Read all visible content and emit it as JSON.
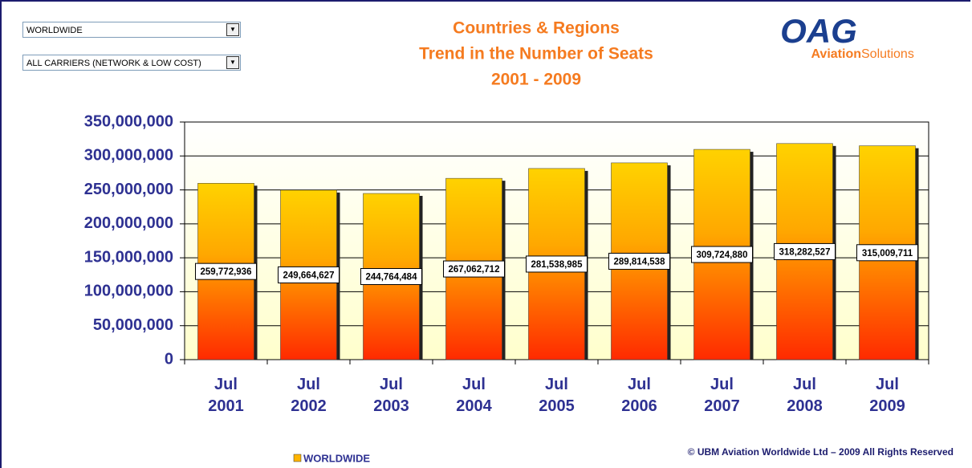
{
  "controls": [
    "WORLDWIDE",
    "ALL CARRIERS (NETWORK & LOW COST)"
  ],
  "logo": {
    "mark": "OAG",
    "line1": "Aviation",
    "line2": "Solutions"
  },
  "copyright": "© UBM Aviation Worldwide Ltd – 2009 All Rights Reserved",
  "chart_data": {
    "type": "bar",
    "title": [
      "Countries & Regions",
      "Trend in the Number of Seats",
      "2001 - 2009"
    ],
    "categories": [
      "Jul 2001",
      "Jul 2002",
      "Jul 2003",
      "Jul 2004",
      "Jul 2005",
      "Jul 2006",
      "Jul 2007",
      "Jul 2008",
      "Jul 2009"
    ],
    "series": [
      {
        "name": "WORLDWIDE",
        "color": "#ffb400",
        "values": [
          259772936,
          249664627,
          244764484,
          267062712,
          281538985,
          289814538,
          309724880,
          318282527,
          315009711
        ],
        "value_labels": [
          "259,772,936",
          "249,664,627",
          "244,764,484",
          "267,062,712",
          "281,538,985",
          "289,814,538",
          "309,724,880",
          "318,282,527",
          "315,009,711"
        ]
      }
    ],
    "ylim": [
      0,
      350000000
    ],
    "yticks": [
      0,
      {
        "value": 50000000,
        "label": "50,000,000"
      },
      {
        "value": 100000000,
        "label": "100,000,000"
      },
      {
        "value": 150000000,
        "label": "150,000,000"
      },
      {
        "value": 200000000,
        "label": "200,000,000"
      },
      {
        "value": 250000000,
        "label": "250,000,000"
      },
      {
        "value": 300000000,
        "label": "300,000,000"
      },
      {
        "value": 350000000,
        "label": "350,000,000"
      }
    ],
    "grid": true,
    "legend": "bottom"
  }
}
